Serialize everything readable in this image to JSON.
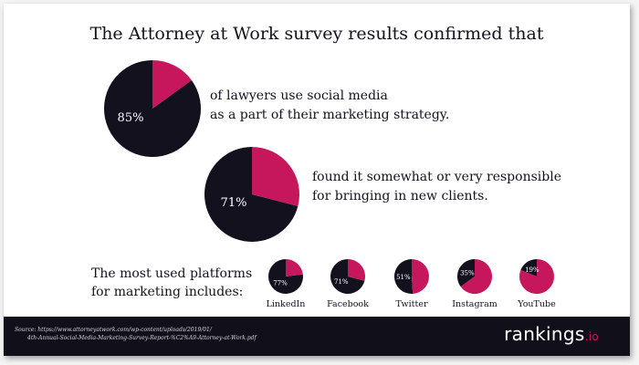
{
  "title": "The Attorney at Work survey results confirmed that",
  "main_stats": [
    {
      "value": 85,
      "label": "85%",
      "text_line1": "of lawyers use social media",
      "text_line2": "as a part of their marketing strategy."
    },
    {
      "value": 71,
      "label": "71%",
      "text_line1": "found it somewhat or very responsible",
      "text_line2": "for bringing in new clients."
    }
  ],
  "platforms_label": {
    "line1": "The most used platforms",
    "line2": "for marketing includes:"
  },
  "chart_data": {
    "type": "pie",
    "title": "The most used platforms for marketing includes:",
    "series": [
      {
        "name": "LinkedIn",
        "value": 77,
        "label": "77%"
      },
      {
        "name": "Facebook",
        "value": 71,
        "label": "71%"
      },
      {
        "name": "Twitter",
        "value": 51,
        "label": "51%"
      },
      {
        "name": "Instagram",
        "value": 35,
        "label": "35%"
      },
      {
        "name": "YouTube",
        "value": 19,
        "label": "19%"
      }
    ]
  },
  "colors": {
    "dark": "#14111f",
    "accent": "#c6175c",
    "footer": "#110f1a"
  },
  "footer": {
    "source_line1": "Source: https://www.attorneyatwork.com/wp-content/uploads/2019/01/",
    "source_line2": "4th-Annual-Social-Media-Marketing-Survey-Report-%C2%A9-Attorney-at-Work.pdf",
    "brand": "rankings",
    "brand_tld": ".io"
  }
}
